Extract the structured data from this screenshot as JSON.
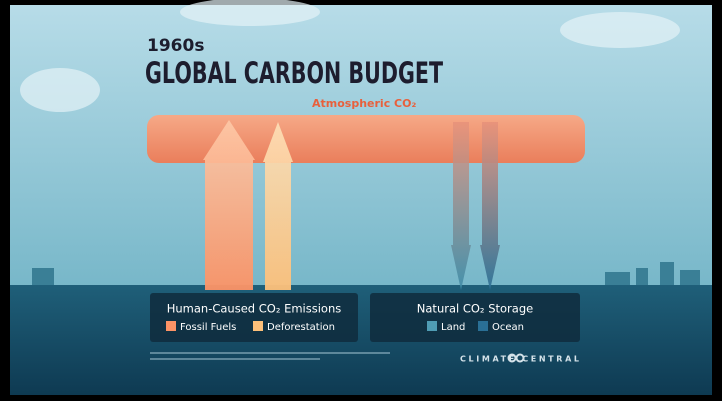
{
  "header": {
    "period": "1960s",
    "title": "GLOBAL CARBON BUDGET"
  },
  "atmosphere": {
    "label": "Atmospheric CO₂"
  },
  "legend": [
    {
      "title": "Human-Caused CO₂ Emissions",
      "items": [
        "Fossil Fuels",
        "Deforestation"
      ]
    },
    {
      "title": "Natural CO₂ Storage",
      "items": [
        "Land",
        "Ocean"
      ]
    }
  ],
  "footer": {
    "brand": "CLIMATE CENTRAL"
  }
}
